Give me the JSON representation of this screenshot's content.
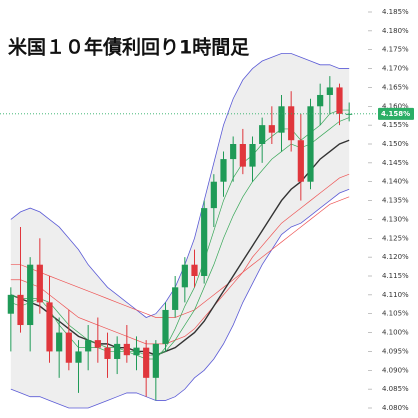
{
  "chart_data": {
    "type": "candlestick",
    "title": "米国１０年債利回り1時間足",
    "up_color": "#1f9a57",
    "down_color": "#e0363c",
    "band_fill": "#eeeeee",
    "ylim": [
      4.08,
      4.185
    ],
    "yticks": [
      {
        "value": 4.08,
        "label": "4.080%"
      },
      {
        "value": 4.085,
        "label": "4.085%"
      },
      {
        "value": 4.09,
        "label": "4.090%"
      },
      {
        "value": 4.095,
        "label": "4.095%"
      },
      {
        "value": 4.1,
        "label": "4.100%"
      },
      {
        "value": 4.105,
        "label": "4.105%"
      },
      {
        "value": 4.11,
        "label": "4.110%"
      },
      {
        "value": 4.115,
        "label": "4.115%"
      },
      {
        "value": 4.12,
        "label": "4.120%"
      },
      {
        "value": 4.125,
        "label": "4.125%"
      },
      {
        "value": 4.13,
        "label": "4.130%"
      },
      {
        "value": 4.135,
        "label": "4.135%"
      },
      {
        "value": 4.14,
        "label": "4.140%"
      },
      {
        "value": 4.145,
        "label": "4.145%"
      },
      {
        "value": 4.15,
        "label": "4.150%"
      },
      {
        "value": 4.155,
        "label": "4.155%"
      },
      {
        "value": 4.16,
        "label": "4.160%"
      },
      {
        "value": 4.165,
        "label": "4.165%"
      },
      {
        "value": 4.17,
        "label": "4.170%"
      },
      {
        "value": 4.175,
        "label": "4.175%"
      },
      {
        "value": 4.18,
        "label": "4.180%"
      },
      {
        "value": 4.185,
        "label": "4.185%"
      }
    ],
    "last_price": {
      "value": 4.158,
      "label": "4.158%",
      "color": "#2bae66"
    },
    "open": [
      4.105,
      4.11,
      4.102,
      4.118,
      4.108,
      4.095,
      4.1,
      4.092,
      4.095,
      4.098,
      4.096,
      4.093,
      4.097,
      4.094,
      4.096,
      4.088,
      4.097,
      4.106,
      4.112,
      4.118,
      4.115,
      4.133,
      4.14,
      4.146,
      4.15,
      4.144,
      4.15,
      4.155,
      4.153,
      4.16,
      4.151,
      4.14,
      4.16,
      4.163,
      4.165,
      4.158
    ],
    "high": [
      4.112,
      4.128,
      4.12,
      4.125,
      4.115,
      4.104,
      4.106,
      4.098,
      4.102,
      4.104,
      4.1,
      4.099,
      4.102,
      4.099,
      4.098,
      4.098,
      4.108,
      4.115,
      4.12,
      4.122,
      4.135,
      4.142,
      4.148,
      4.152,
      4.154,
      4.152,
      4.157,
      4.16,
      4.163,
      4.164,
      4.158,
      4.162,
      4.166,
      4.168,
      4.166,
      4.161
    ],
    "low": [
      4.095,
      4.1,
      4.095,
      4.105,
      4.092,
      4.088,
      4.09,
      4.084,
      4.09,
      4.092,
      4.088,
      4.089,
      4.092,
      4.09,
      4.083,
      4.082,
      4.095,
      4.104,
      4.108,
      4.112,
      4.113,
      4.128,
      4.136,
      4.14,
      4.142,
      4.14,
      4.145,
      4.15,
      4.148,
      4.148,
      4.135,
      4.138,
      4.155,
      4.158,
      4.155,
      4.156
    ],
    "close": [
      4.11,
      4.102,
      4.118,
      4.108,
      4.095,
      4.1,
      4.092,
      4.095,
      4.098,
      4.096,
      4.093,
      4.097,
      4.094,
      4.096,
      4.088,
      4.097,
      4.106,
      4.112,
      4.118,
      4.115,
      4.133,
      4.14,
      4.146,
      4.15,
      4.144,
      4.15,
      4.155,
      4.153,
      4.16,
      4.151,
      4.14,
      4.16,
      4.163,
      4.165,
      4.158,
      4.158
    ],
    "lines": [
      {
        "color": "#5b5bd6",
        "width": 0.8,
        "values": [
          4.13,
          4.132,
          4.133,
          4.132,
          4.13,
          4.128,
          4.125,
          4.122,
          4.118,
          4.115,
          4.112,
          4.11,
          4.108,
          4.106,
          4.104,
          4.105,
          4.108,
          4.112,
          4.118,
          4.125,
          4.135,
          4.145,
          4.155,
          4.162,
          4.167,
          4.17,
          4.172,
          4.173,
          4.174,
          4.174,
          4.173,
          4.172,
          4.171,
          4.171,
          4.17,
          4.17
        ]
      },
      {
        "color": "#5b5bd6",
        "width": 0.8,
        "values": [
          4.085,
          4.084,
          4.083,
          4.083,
          4.082,
          4.081,
          4.08,
          4.08,
          4.08,
          4.081,
          4.082,
          4.083,
          4.084,
          4.084,
          4.083,
          4.082,
          4.082,
          4.083,
          4.085,
          4.088,
          4.09,
          4.093,
          4.097,
          4.102,
          4.108,
          4.113,
          4.118,
          4.122,
          4.126,
          4.128,
          4.129,
          4.131,
          4.133,
          4.135,
          4.137,
          4.138
        ]
      },
      {
        "color": "#ee5555",
        "width": 0.7,
        "values": [
          4.118,
          4.118,
          4.117,
          4.116,
          4.115,
          4.114,
          4.113,
          4.112,
          4.111,
          4.11,
          4.109,
          4.108,
          4.107,
          4.106,
          4.105,
          4.104,
          4.104,
          4.104,
          4.105,
          4.106,
          4.108,
          4.11,
          4.112,
          4.114,
          4.116,
          4.118,
          4.12,
          4.122,
          4.124,
          4.126,
          4.128,
          4.13,
          4.132,
          4.134,
          4.135,
          4.136
        ]
      },
      {
        "color": "#ee5555",
        "width": 0.7,
        "values": [
          4.114,
          4.114,
          4.113,
          4.112,
          4.11,
          4.108,
          4.106,
          4.104,
          4.103,
          4.102,
          4.101,
          4.1,
          4.099,
          4.098,
          4.097,
          4.097,
          4.097,
          4.098,
          4.099,
          4.101,
          4.104,
          4.107,
          4.11,
          4.113,
          4.116,
          4.12,
          4.123,
          4.126,
          4.129,
          4.131,
          4.133,
          4.135,
          4.137,
          4.139,
          4.141,
          4.142
        ]
      },
      {
        "color": "#333333",
        "width": 1.4,
        "values": [
          4.11,
          4.109,
          4.108,
          4.107,
          4.105,
          4.103,
          4.101,
          4.099,
          4.098,
          4.097,
          4.097,
          4.096,
          4.096,
          4.095,
          4.095,
          4.094,
          4.095,
          4.096,
          4.098,
          4.1,
          4.103,
          4.107,
          4.111,
          4.115,
          4.119,
          4.123,
          4.127,
          4.131,
          4.135,
          4.138,
          4.14,
          4.143,
          4.146,
          4.148,
          4.15,
          4.151
        ]
      },
      {
        "color": "#3aa85a",
        "width": 0.7,
        "values": [
          4.11,
          4.109,
          4.109,
          4.109,
          4.108,
          4.105,
          4.102,
          4.1,
          4.098,
          4.097,
          4.096,
          4.096,
          4.095,
          4.095,
          4.094,
          4.094,
          4.095,
          4.098,
          4.102,
          4.106,
          4.112,
          4.118,
          4.125,
          4.131,
          4.136,
          4.14,
          4.143,
          4.146,
          4.148,
          4.15,
          4.149,
          4.15,
          4.152,
          4.154,
          4.156,
          4.157
        ]
      },
      {
        "color": "#3aa85a",
        "width": 0.7,
        "values": [
          4.108,
          4.107,
          4.108,
          4.109,
          4.106,
          4.102,
          4.099,
          4.096,
          4.096,
          4.096,
          4.095,
          4.095,
          4.095,
          4.094,
          4.093,
          4.093,
          4.096,
          4.101,
          4.107,
          4.112,
          4.119,
          4.127,
          4.135,
          4.141,
          4.145,
          4.147,
          4.15,
          4.152,
          4.154,
          4.154,
          4.151,
          4.153,
          4.155,
          4.158,
          4.159,
          4.159
        ]
      }
    ]
  }
}
